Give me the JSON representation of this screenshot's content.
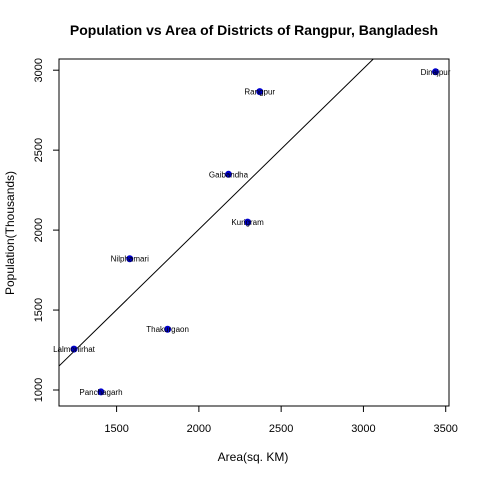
{
  "chart_data": {
    "type": "scatter",
    "title": "Population vs Area of Districts of Rangpur, Bangladesh",
    "xlabel": "Area(sq. KM)",
    "ylabel": "Population(Thousands)",
    "xlim": [
      1150,
      3520
    ],
    "ylim": [
      900,
      3070
    ],
    "xticks": [
      1500,
      2000,
      2500,
      3000,
      3500
    ],
    "yticks": [
      1000,
      1500,
      2000,
      2500,
      3000
    ],
    "grid": false,
    "point_color": "#0000cd",
    "line_color": "#000000",
    "points": [
      {
        "label": "Dinajpur",
        "x": 3438,
        "y": 2990
      },
      {
        "label": "Rangpur",
        "x": 2370,
        "y": 2866
      },
      {
        "label": "Gaibandha",
        "x": 2180,
        "y": 2349
      },
      {
        "label": "Kurigram",
        "x": 2296,
        "y": 2050
      },
      {
        "label": "Nilphamari",
        "x": 1580,
        "y": 1821
      },
      {
        "label": "Thakurgaon",
        "x": 1810,
        "y": 1380
      },
      {
        "label": "Lalmonirhat",
        "x": 1241,
        "y": 1256
      },
      {
        "label": "Panchagarh",
        "x": 1405,
        "y": 988
      }
    ],
    "regression_line": {
      "p1": [
        1150,
        1150
      ],
      "p2": [
        3060,
        3070
      ]
    }
  }
}
